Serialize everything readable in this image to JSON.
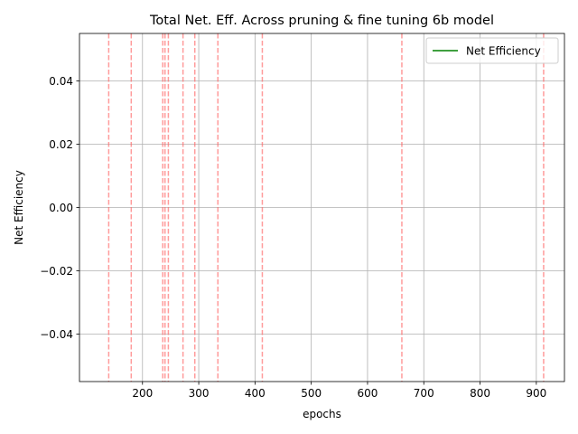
{
  "chart_data": {
    "type": "line",
    "title": "Total Net. Eff. Across pruning & fine tuning 6b model",
    "xlabel": "epochs",
    "ylabel": "Net Efficiency",
    "xlim": [
      88,
      950
    ],
    "ylim": [
      -0.055,
      0.055
    ],
    "xticks": [
      200,
      300,
      400,
      500,
      600,
      700,
      800,
      900
    ],
    "xtick_labels": [
      "200",
      "300",
      "400",
      "500",
      "600",
      "700",
      "800",
      "900"
    ],
    "yticks": [
      -0.04,
      -0.02,
      0.0,
      0.02,
      0.04
    ],
    "ytick_labels": [
      "−0.04",
      "−0.02",
      "0.00",
      "0.02",
      "0.04"
    ],
    "grid": true,
    "legend_position": "top-right",
    "series": [
      {
        "name": "Net Efficiency",
        "color": "#008000",
        "x": [],
        "y": []
      }
    ],
    "vertical_lines": {
      "color": "#ff6666",
      "style": "dashed",
      "x": [
        140,
        180,
        236,
        240,
        246,
        272,
        293,
        334,
        413,
        661,
        913
      ]
    }
  }
}
